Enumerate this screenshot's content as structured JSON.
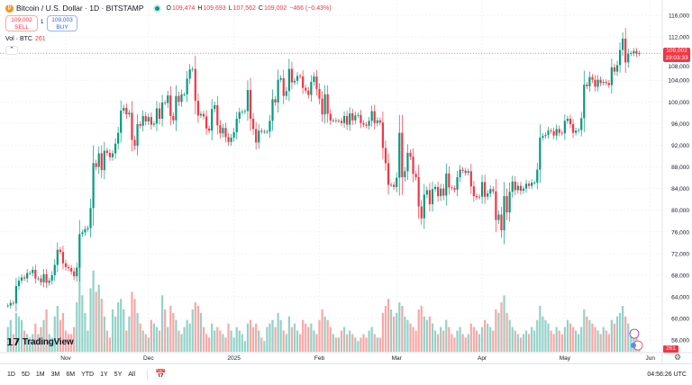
{
  "header": {
    "symbol": "Bitcoin / U.S. Dollar · 1D · BITSTAMP",
    "icon": "bitcoin-logo-icon",
    "o_label": "O",
    "o": "109,474",
    "h_label": "H",
    "h": "109,693",
    "l_label": "L",
    "l": "107,562",
    "c_label": "C",
    "c": "109,002",
    "change": "−466 (−0.43%)"
  },
  "trade": {
    "sell_price": "109,002",
    "sell_label": "SELL",
    "spread": "1",
    "buy_price": "109,003",
    "buy_label": "BUY"
  },
  "volume_legend": {
    "label": "Vol · BTC",
    "value": "261"
  },
  "price_tag": {
    "price": "109,002",
    "countdown": "19:03:33"
  },
  "volume_tag": "261",
  "brand": "TradingView",
  "colors": {
    "up": "#089981",
    "down": "#f23645",
    "up_volume": "#92d2c8",
    "down_volume": "#f7a8a6",
    "grid": "#f0f3fa"
  },
  "price_axis": [
    "116,000",
    "112,000",
    "108,000",
    "104,000",
    "100,000",
    "96,000",
    "92,000",
    "88,000",
    "84,000",
    "80,000",
    "76,000",
    "72,000",
    "68,000",
    "64,000",
    "60,000",
    "56,000"
  ],
  "time_axis": [
    "Nov",
    "Dec",
    "2025",
    "Feb",
    "Mar",
    "Apr",
    "May",
    "Jun"
  ],
  "ranges": [
    "1D",
    "5D",
    "1M",
    "3M",
    "6M",
    "YTD",
    "1Y",
    "5Y",
    "All"
  ],
  "clock": "04:56:26 UTC",
  "chart_data": {
    "type": "candlestick",
    "start_date": "2024-10-11",
    "interval": "1D",
    "price_unit": "USD thousands",
    "ylim": [
      56,
      116
    ],
    "close": [
      62.4,
      62.9,
      62.8,
      66.0,
      67.0,
      67.6,
      67.4,
      68.4,
      68.4,
      69.0,
      67.4,
      67.4,
      66.7,
      68.2,
      66.6,
      67.0,
      68.0,
      69.9,
      72.7,
      72.3,
      70.2,
      69.5,
      69.3,
      68.7,
      67.8,
      69.4,
      75.6,
      75.9,
      76.5,
      76.7,
      80.4,
      88.7,
      88.0,
      90.5,
      87.4,
      91.0,
      90.6,
      89.8,
      90.5,
      92.3,
      94.3,
      98.4,
      98.9,
      97.7,
      98.0,
      93.0,
      91.9,
      95.9,
      95.6,
      97.4,
      96.4,
      97.2,
      95.8,
      96.0,
      98.8,
      96.9,
      99.9,
      99.8,
      101.2,
      97.4,
      96.6,
      101.1,
      100.0,
      101.4,
      101.4,
      104.3,
      106.0,
      106.1,
      100.2,
      97.5,
      97.8,
      97.3,
      95.1,
      94.7,
      98.7,
      99.4,
      95.7,
      94.2,
      95.2,
      93.5,
      92.6,
      93.4,
      94.4,
      96.9,
      98.1,
      98.2,
      98.3,
      102.2,
      96.9,
      95.0,
      92.5,
      94.7,
      94.5,
      94.5,
      94.5,
      96.5,
      100.5,
      99.9,
      104.1,
      104.4,
      101.1,
      102.0,
      106.1,
      103.6,
      103.9,
      104.8,
      104.7,
      102.6,
      102.1,
      101.3,
      103.7,
      104.7,
      102.4,
      100.6,
      97.7,
      101.4,
      97.8,
      96.6,
      96.6,
      96.5,
      96.5,
      96.1,
      97.4,
      95.8,
      97.9,
      96.6,
      97.5,
      97.6,
      96.1,
      95.8,
      95.6,
      96.5,
      98.3,
      96.1,
      96.6,
      96.2,
      91.5,
      88.7,
      84.7,
      84.7,
      84.3,
      86.0,
      94.3,
      86.1,
      87.2,
      90.6,
      89.9,
      86.7,
      86.1,
      80.7,
      78.5,
      82.9,
      83.7,
      81.1,
      83.9,
      84.3,
      82.6,
      84.0,
      82.7,
      86.8,
      84.2,
      84.1,
      83.8,
      86.1,
      87.5,
      87.3,
      86.9,
      87.2,
      84.4,
      82.6,
      82.4,
      82.5,
      85.2,
      82.5,
      83.1,
      83.9,
      83.5,
      78.2,
      79.2,
      76.3,
      82.6,
      79.6,
      83.4,
      85.3,
      83.7,
      84.5,
      83.6,
      84.0,
      84.9,
      84.5,
      85.1,
      85.1,
      87.5,
      93.4,
      93.7,
      93.9,
      94.7,
      94.6,
      93.8,
      95.0,
      94.3,
      94.2,
      96.5,
      96.9,
      95.9,
      94.3,
      94.7,
      94.8,
      97.0,
      103.2,
      102.9,
      104.6,
      104.1,
      102.8,
      104.1,
      103.5,
      103.7,
      103.5,
      103.1,
      106.4,
      105.6,
      106.8,
      109.6,
      111.7,
      107.3,
      108.9,
      109.0,
      109.4,
      108.9,
      109.0
    ],
    "volume_btc": [
      700,
      900,
      500,
      1100,
      1000,
      900,
      600,
      500,
      400,
      500,
      800,
      500,
      700,
      900,
      1200,
      500,
      400,
      1000,
      1300,
      900,
      1100,
      600,
      500,
      500,
      700,
      1400,
      2500,
      1600,
      1100,
      600,
      1800,
      2300,
      1700,
      1900,
      1500,
      1000,
      600,
      400,
      1200,
      1000,
      1400,
      1500,
      1200,
      600,
      1000,
      1700,
      1500,
      1100,
      800,
      600,
      500,
      400,
      900,
      800,
      700,
      600,
      1600,
      1200,
      700,
      1300,
      1100,
      900,
      600,
      500,
      700,
      900,
      800,
      1200,
      1400,
      1300,
      1100,
      700,
      500,
      400,
      800,
      600,
      700,
      600,
      500,
      400,
      800,
      600,
      400,
      700,
      600,
      500,
      300,
      800,
      900,
      700,
      800,
      600,
      400,
      300,
      700,
      800,
      900,
      700,
      1100,
      900,
      600,
      500,
      1000,
      700,
      800,
      600,
      500,
      900,
      800,
      700,
      800,
      600,
      500,
      900,
      1200,
      1000,
      900,
      700,
      500,
      400,
      400,
      600,
      700,
      500,
      600,
      500,
      400,
      300,
      400,
      500,
      400,
      600,
      700,
      500,
      400,
      400,
      1100,
      1300,
      1500,
      1200,
      1000,
      1100,
      1400,
      1300,
      1000,
      900,
      800,
      700,
      600,
      1200,
      1300,
      1000,
      900,
      1000,
      800,
      600,
      500,
      700,
      600,
      900,
      700,
      500,
      400,
      600,
      700,
      500,
      400,
      500,
      800,
      700,
      600,
      500,
      700,
      900,
      800,
      700,
      600,
      1200,
      1100,
      1400,
      1600,
      1100,
      900,
      700,
      600,
      500,
      400,
      500,
      600,
      500,
      700,
      600,
      900,
      1300,
      1000,
      900,
      800,
      600,
      500,
      700,
      600,
      500,
      700,
      900,
      800,
      700,
      600,
      500,
      700,
      1200,
      1000,
      900,
      800,
      700,
      600,
      500,
      700,
      600,
      500,
      900,
      800,
      1000,
      1100,
      1300,
      1000,
      800,
      600,
      500,
      400,
      261
    ]
  }
}
